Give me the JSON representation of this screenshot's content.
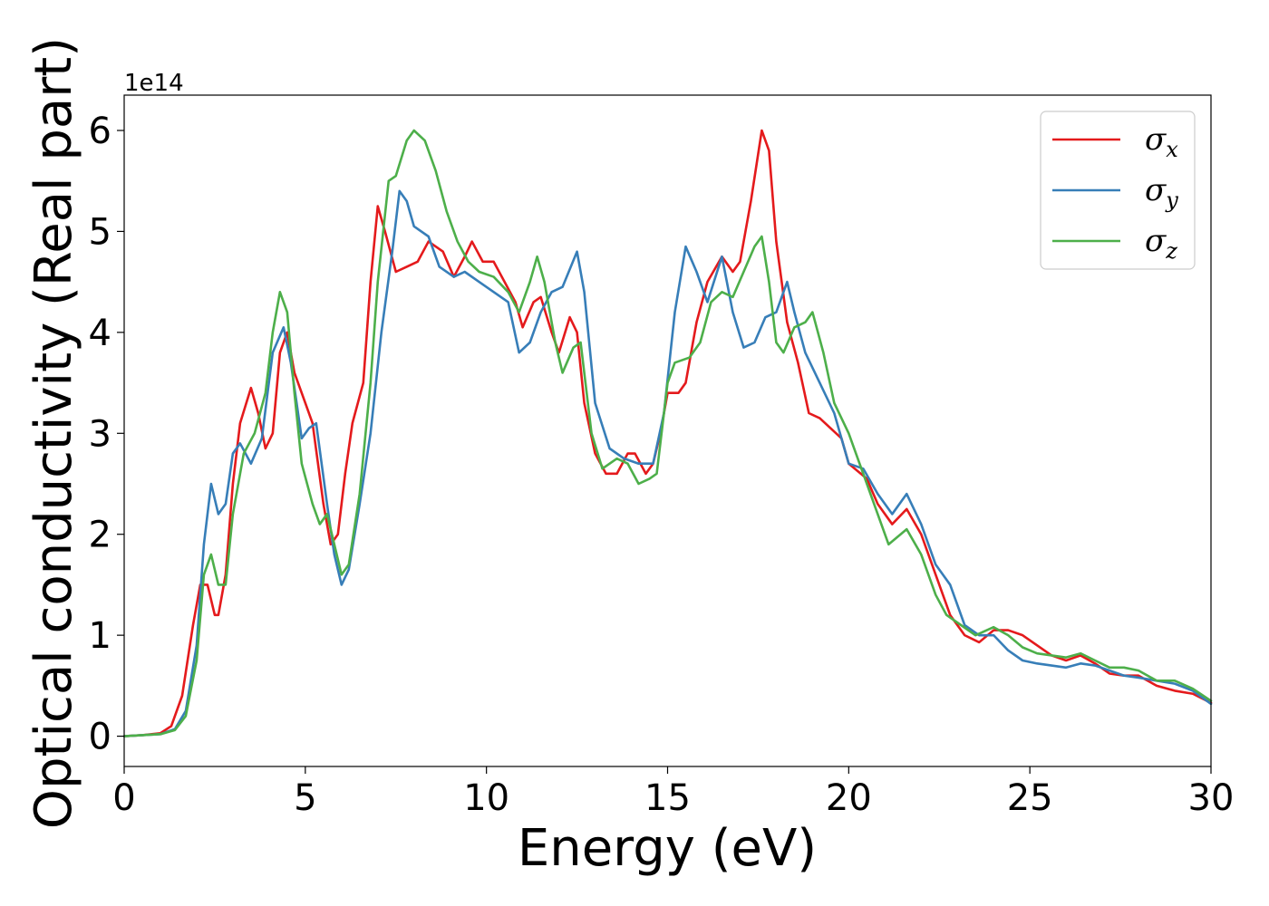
{
  "chart_data": {
    "type": "line",
    "xlabel": "Energy (eV)",
    "ylabel": "Optical conductivity (Real part)",
    "y_offset_label": "1e14",
    "xlim": [
      0,
      30
    ],
    "ylim": [
      -0.3,
      6.35
    ],
    "x_ticks": [
      0,
      5,
      10,
      15,
      20,
      25,
      30
    ],
    "x_tick_labels": [
      "0",
      "5",
      "10",
      "15",
      "20",
      "25",
      "30"
    ],
    "y_ticks": [
      0,
      1,
      2,
      3,
      4,
      5,
      6
    ],
    "y_tick_labels": [
      "0",
      "1",
      "2",
      "3",
      "4",
      "5",
      "6"
    ],
    "grid": false,
    "legend_position": "top-right",
    "series": [
      {
        "name": "σx",
        "legend_symbol": "σ",
        "legend_subscript": "x",
        "color": "#e41a1c",
        "points": [
          [
            0,
            0
          ],
          [
            0.5,
            0.01
          ],
          [
            1,
            0.03
          ],
          [
            1.3,
            0.1
          ],
          [
            1.6,
            0.4
          ],
          [
            1.9,
            1.1
          ],
          [
            2.1,
            1.5
          ],
          [
            2.3,
            1.5
          ],
          [
            2.5,
            1.2
          ],
          [
            2.6,
            1.2
          ],
          [
            2.8,
            1.6
          ],
          [
            3.0,
            2.5
          ],
          [
            3.2,
            3.1
          ],
          [
            3.5,
            3.45
          ],
          [
            3.7,
            3.2
          ],
          [
            3.9,
            2.85
          ],
          [
            4.1,
            3.0
          ],
          [
            4.3,
            3.8
          ],
          [
            4.5,
            4.0
          ],
          [
            4.7,
            3.6
          ],
          [
            5.0,
            3.3
          ],
          [
            5.2,
            3.1
          ],
          [
            5.5,
            2.3
          ],
          [
            5.7,
            1.9
          ],
          [
            5.9,
            2.0
          ],
          [
            6.1,
            2.6
          ],
          [
            6.3,
            3.1
          ],
          [
            6.6,
            3.5
          ],
          [
            6.8,
            4.5
          ],
          [
            7.0,
            5.25
          ],
          [
            7.2,
            5.0
          ],
          [
            7.5,
            4.6
          ],
          [
            7.8,
            4.65
          ],
          [
            8.1,
            4.7
          ],
          [
            8.4,
            4.9
          ],
          [
            8.8,
            4.8
          ],
          [
            9.1,
            4.55
          ],
          [
            9.4,
            4.75
          ],
          [
            9.6,
            4.9
          ],
          [
            9.9,
            4.7
          ],
          [
            10.2,
            4.7
          ],
          [
            10.5,
            4.5
          ],
          [
            10.8,
            4.3
          ],
          [
            11.0,
            4.05
          ],
          [
            11.3,
            4.3
          ],
          [
            11.5,
            4.35
          ],
          [
            11.8,
            4.0
          ],
          [
            12.0,
            3.8
          ],
          [
            12.3,
            4.15
          ],
          [
            12.5,
            4.0
          ],
          [
            12.7,
            3.3
          ],
          [
            13.0,
            2.8
          ],
          [
            13.3,
            2.6
          ],
          [
            13.6,
            2.6
          ],
          [
            13.9,
            2.8
          ],
          [
            14.1,
            2.8
          ],
          [
            14.4,
            2.6
          ],
          [
            14.6,
            2.7
          ],
          [
            14.8,
            3.0
          ],
          [
            15.0,
            3.4
          ],
          [
            15.3,
            3.4
          ],
          [
            15.5,
            3.5
          ],
          [
            15.8,
            4.1
          ],
          [
            16.1,
            4.5
          ],
          [
            16.5,
            4.75
          ],
          [
            16.8,
            4.6
          ],
          [
            17.0,
            4.7
          ],
          [
            17.3,
            5.3
          ],
          [
            17.6,
            6.0
          ],
          [
            17.8,
            5.8
          ],
          [
            18.0,
            4.9
          ],
          [
            18.3,
            4.1
          ],
          [
            18.6,
            3.7
          ],
          [
            18.9,
            3.2
          ],
          [
            19.2,
            3.15
          ],
          [
            19.5,
            3.05
          ],
          [
            19.8,
            2.95
          ],
          [
            20.0,
            2.7
          ],
          [
            20.5,
            2.55
          ],
          [
            20.8,
            2.3
          ],
          [
            21.2,
            2.1
          ],
          [
            21.6,
            2.25
          ],
          [
            22.0,
            2.0
          ],
          [
            22.4,
            1.6
          ],
          [
            22.8,
            1.2
          ],
          [
            23.2,
            1.0
          ],
          [
            23.6,
            0.93
          ],
          [
            24.0,
            1.05
          ],
          [
            24.4,
            1.05
          ],
          [
            24.8,
            1.0
          ],
          [
            25.2,
            0.9
          ],
          [
            25.6,
            0.8
          ],
          [
            26.0,
            0.75
          ],
          [
            26.4,
            0.8
          ],
          [
            26.8,
            0.72
          ],
          [
            27.2,
            0.62
          ],
          [
            27.6,
            0.6
          ],
          [
            28.0,
            0.6
          ],
          [
            28.5,
            0.5
          ],
          [
            29.0,
            0.45
          ],
          [
            29.5,
            0.42
          ],
          [
            30.0,
            0.33
          ]
        ]
      },
      {
        "name": "σy",
        "legend_symbol": "σ",
        "legend_subscript": "y",
        "color": "#377eb8",
        "points": [
          [
            0,
            0
          ],
          [
            0.5,
            0.01
          ],
          [
            1,
            0.02
          ],
          [
            1.4,
            0.07
          ],
          [
            1.7,
            0.25
          ],
          [
            2.0,
            0.9
          ],
          [
            2.2,
            1.9
          ],
          [
            2.4,
            2.5
          ],
          [
            2.6,
            2.2
          ],
          [
            2.8,
            2.3
          ],
          [
            3.0,
            2.8
          ],
          [
            3.2,
            2.9
          ],
          [
            3.5,
            2.7
          ],
          [
            3.8,
            2.95
          ],
          [
            4.1,
            3.8
          ],
          [
            4.4,
            4.05
          ],
          [
            4.6,
            3.7
          ],
          [
            4.9,
            2.95
          ],
          [
            5.1,
            3.05
          ],
          [
            5.3,
            3.1
          ],
          [
            5.6,
            2.3
          ],
          [
            5.8,
            1.8
          ],
          [
            6.0,
            1.5
          ],
          [
            6.2,
            1.65
          ],
          [
            6.5,
            2.3
          ],
          [
            6.8,
            3.0
          ],
          [
            7.1,
            4.0
          ],
          [
            7.4,
            4.8
          ],
          [
            7.6,
            5.4
          ],
          [
            7.8,
            5.3
          ],
          [
            8.0,
            5.05
          ],
          [
            8.4,
            4.95
          ],
          [
            8.7,
            4.65
          ],
          [
            9.1,
            4.55
          ],
          [
            9.4,
            4.6
          ],
          [
            9.8,
            4.5
          ],
          [
            10.2,
            4.4
          ],
          [
            10.6,
            4.3
          ],
          [
            10.9,
            3.8
          ],
          [
            11.2,
            3.9
          ],
          [
            11.5,
            4.2
          ],
          [
            11.8,
            4.4
          ],
          [
            12.1,
            4.45
          ],
          [
            12.5,
            4.8
          ],
          [
            12.7,
            4.4
          ],
          [
            13.0,
            3.3
          ],
          [
            13.4,
            2.85
          ],
          [
            13.8,
            2.75
          ],
          [
            14.2,
            2.7
          ],
          [
            14.6,
            2.7
          ],
          [
            14.9,
            3.2
          ],
          [
            15.2,
            4.2
          ],
          [
            15.5,
            4.85
          ],
          [
            15.8,
            4.6
          ],
          [
            16.1,
            4.3
          ],
          [
            16.5,
            4.75
          ],
          [
            16.8,
            4.2
          ],
          [
            17.1,
            3.85
          ],
          [
            17.4,
            3.9
          ],
          [
            17.7,
            4.15
          ],
          [
            18.0,
            4.2
          ],
          [
            18.3,
            4.5
          ],
          [
            18.5,
            4.2
          ],
          [
            18.8,
            3.8
          ],
          [
            19.2,
            3.5
          ],
          [
            19.6,
            3.2
          ],
          [
            20.0,
            2.7
          ],
          [
            20.4,
            2.65
          ],
          [
            20.8,
            2.4
          ],
          [
            21.2,
            2.2
          ],
          [
            21.6,
            2.4
          ],
          [
            22.0,
            2.1
          ],
          [
            22.4,
            1.7
          ],
          [
            22.8,
            1.5
          ],
          [
            23.2,
            1.1
          ],
          [
            23.6,
            1.0
          ],
          [
            24.0,
            1.0
          ],
          [
            24.4,
            0.85
          ],
          [
            24.8,
            0.75
          ],
          [
            25.2,
            0.72
          ],
          [
            25.6,
            0.7
          ],
          [
            26.0,
            0.68
          ],
          [
            26.4,
            0.72
          ],
          [
            26.8,
            0.7
          ],
          [
            27.2,
            0.65
          ],
          [
            27.6,
            0.6
          ],
          [
            28.0,
            0.58
          ],
          [
            28.5,
            0.55
          ],
          [
            29.0,
            0.52
          ],
          [
            29.5,
            0.45
          ],
          [
            30.0,
            0.32
          ]
        ]
      },
      {
        "name": "σz",
        "legend_symbol": "σ",
        "legend_subscript": "z",
        "color": "#4daf4a",
        "points": [
          [
            0,
            0
          ],
          [
            0.5,
            0.01
          ],
          [
            1,
            0.02
          ],
          [
            1.4,
            0.06
          ],
          [
            1.7,
            0.2
          ],
          [
            2.0,
            0.75
          ],
          [
            2.2,
            1.6
          ],
          [
            2.4,
            1.8
          ],
          [
            2.6,
            1.5
          ],
          [
            2.8,
            1.5
          ],
          [
            3.0,
            2.2
          ],
          [
            3.3,
            2.8
          ],
          [
            3.6,
            3.0
          ],
          [
            3.9,
            3.4
          ],
          [
            4.1,
            4.0
          ],
          [
            4.3,
            4.4
          ],
          [
            4.5,
            4.2
          ],
          [
            4.7,
            3.4
          ],
          [
            4.9,
            2.7
          ],
          [
            5.2,
            2.3
          ],
          [
            5.4,
            2.1
          ],
          [
            5.6,
            2.2
          ],
          [
            5.8,
            1.9
          ],
          [
            6.0,
            1.6
          ],
          [
            6.2,
            1.7
          ],
          [
            6.5,
            2.4
          ],
          [
            6.8,
            3.5
          ],
          [
            7.0,
            4.5
          ],
          [
            7.3,
            5.5
          ],
          [
            7.5,
            5.55
          ],
          [
            7.8,
            5.9
          ],
          [
            8.0,
            6.0
          ],
          [
            8.3,
            5.9
          ],
          [
            8.6,
            5.6
          ],
          [
            8.9,
            5.2
          ],
          [
            9.2,
            4.9
          ],
          [
            9.5,
            4.7
          ],
          [
            9.8,
            4.6
          ],
          [
            10.2,
            4.55
          ],
          [
            10.6,
            4.4
          ],
          [
            10.9,
            4.2
          ],
          [
            11.2,
            4.5
          ],
          [
            11.4,
            4.75
          ],
          [
            11.6,
            4.5
          ],
          [
            11.9,
            3.9
          ],
          [
            12.1,
            3.6
          ],
          [
            12.4,
            3.85
          ],
          [
            12.6,
            3.9
          ],
          [
            12.9,
            3.0
          ],
          [
            13.2,
            2.65
          ],
          [
            13.6,
            2.75
          ],
          [
            13.9,
            2.7
          ],
          [
            14.2,
            2.5
          ],
          [
            14.5,
            2.55
          ],
          [
            14.7,
            2.6
          ],
          [
            15.0,
            3.5
          ],
          [
            15.2,
            3.7
          ],
          [
            15.6,
            3.75
          ],
          [
            15.9,
            3.9
          ],
          [
            16.2,
            4.3
          ],
          [
            16.5,
            4.4
          ],
          [
            16.8,
            4.35
          ],
          [
            17.1,
            4.6
          ],
          [
            17.4,
            4.85
          ],
          [
            17.6,
            4.95
          ],
          [
            17.8,
            4.5
          ],
          [
            18.0,
            3.9
          ],
          [
            18.2,
            3.8
          ],
          [
            18.5,
            4.05
          ],
          [
            18.8,
            4.1
          ],
          [
            19.0,
            4.2
          ],
          [
            19.3,
            3.8
          ],
          [
            19.6,
            3.3
          ],
          [
            20.0,
            3.0
          ],
          [
            20.4,
            2.6
          ],
          [
            20.8,
            2.2
          ],
          [
            21.1,
            1.9
          ],
          [
            21.6,
            2.05
          ],
          [
            22.0,
            1.8
          ],
          [
            22.4,
            1.4
          ],
          [
            22.7,
            1.2
          ],
          [
            23.1,
            1.1
          ],
          [
            23.5,
            1.0
          ],
          [
            24.0,
            1.08
          ],
          [
            24.4,
            1.0
          ],
          [
            24.8,
            0.88
          ],
          [
            25.2,
            0.82
          ],
          [
            25.6,
            0.8
          ],
          [
            26.0,
            0.78
          ],
          [
            26.4,
            0.82
          ],
          [
            26.8,
            0.75
          ],
          [
            27.2,
            0.68
          ],
          [
            27.6,
            0.68
          ],
          [
            28.0,
            0.65
          ],
          [
            28.5,
            0.55
          ],
          [
            29.0,
            0.55
          ],
          [
            29.5,
            0.47
          ],
          [
            30.0,
            0.35
          ]
        ]
      }
    ]
  }
}
